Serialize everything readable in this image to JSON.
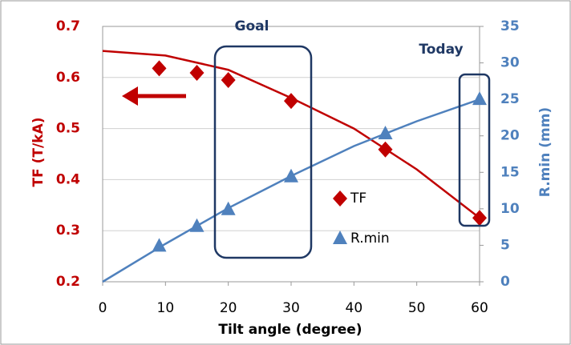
{
  "chart_data": {
    "type": "line",
    "xlabel": "Tilt angle (degree)",
    "ylabel": "TF (T/kA)",
    "y2label": "R.min (mm)",
    "xlim": [
      0,
      60
    ],
    "xticks": [
      0,
      10,
      20,
      30,
      40,
      50,
      60
    ],
    "ylim": [
      0.2,
      0.7
    ],
    "yticks": [
      0.2,
      0.3,
      0.4,
      0.5,
      0.6,
      0.7
    ],
    "y2lim": [
      0,
      35
    ],
    "y2ticks": [
      0,
      5,
      10,
      15,
      20,
      25,
      30,
      35
    ],
    "grid": true,
    "legend": "center",
    "annotations": [
      "Goal",
      "Today"
    ],
    "series": [
      {
        "name": "TF",
        "color": "#c00000",
        "marker": "diamond",
        "axis": "y",
        "points": {
          "x": [
            9,
            15,
            20,
            30,
            45,
            60
          ],
          "values": [
            0.618,
            0.609,
            0.595,
            0.554,
            0.459,
            0.325
          ]
        },
        "curve": {
          "x": [
            0,
            10,
            20,
            30,
            40,
            50,
            60
          ],
          "values": [
            0.652,
            0.643,
            0.615,
            0.56,
            0.5,
            0.42,
            0.325
          ]
        }
      },
      {
        "name": "R.min",
        "color": "#4f81bd",
        "marker": "triangle",
        "axis": "y2",
        "points": {
          "x": [
            9,
            15,
            20,
            30,
            45,
            60
          ],
          "values": [
            4.9,
            7.6,
            9.9,
            14.4,
            20.3,
            25
          ]
        },
        "curve": {
          "x": [
            0,
            10,
            20,
            30,
            40,
            50,
            60
          ],
          "values": [
            0,
            5.2,
            10.1,
            14.5,
            18.6,
            22,
            25
          ]
        }
      }
    ]
  }
}
